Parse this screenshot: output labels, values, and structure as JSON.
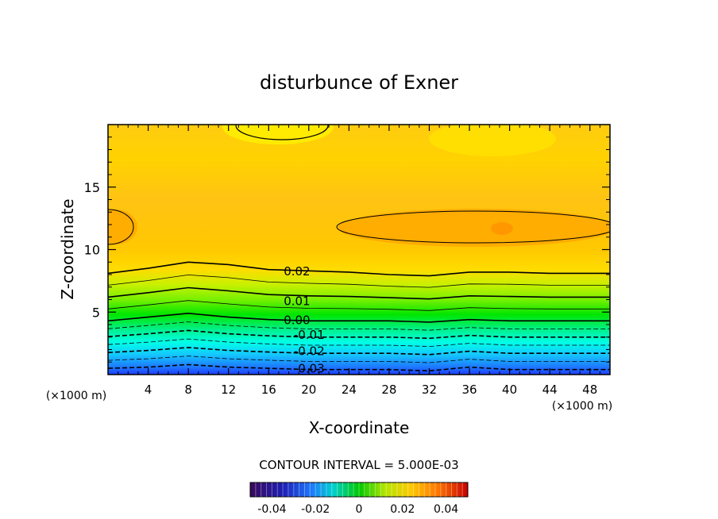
{
  "chart_data": {
    "type": "heatmap",
    "title": "disturbunce of Exner",
    "xlabel": "X-coordinate",
    "ylabel": "Z-coordinate",
    "x_unit": "(×1000 m)",
    "z_unit": "(×1000 m)",
    "xlim": [
      0,
      50
    ],
    "ylim": [
      0,
      20
    ],
    "x_ticks": [
      4,
      8,
      12,
      16,
      20,
      24,
      28,
      32,
      36,
      40,
      44,
      48
    ],
    "y_ticks": [
      5,
      10,
      15
    ],
    "contour_interval_text": "CONTOUR INTERVAL = 5.000E-03",
    "contour_labels": [
      {
        "text": "0.02",
        "x": 17.5,
        "z": 8.2
      },
      {
        "text": "0.01",
        "x": 17.5,
        "z": 5.8
      },
      {
        "text": "0.00",
        "x": 17.5,
        "z": 4.3
      },
      {
        "text": "-0.01",
        "x": 18.5,
        "z": 3.1
      },
      {
        "text": "-0.02",
        "x": 18.5,
        "z": 1.8
      },
      {
        "text": "-0.03",
        "x": 18.5,
        "z": 0.4
      }
    ],
    "contour_profile": {
      "x": [
        0,
        4,
        8,
        12,
        16,
        20,
        24,
        28,
        32,
        36,
        40,
        44,
        48,
        50
      ],
      "z_at_0.02": [
        8.1,
        8.5,
        9.0,
        8.8,
        8.4,
        8.3,
        8.2,
        8.0,
        7.9,
        8.2,
        8.2,
        8.1,
        8.1,
        8.1
      ],
      "z_at_0.00": [
        4.3,
        4.6,
        4.9,
        4.6,
        4.4,
        4.3,
        4.3,
        4.3,
        4.2,
        4.4,
        4.3,
        4.3,
        4.3,
        4.3
      ],
      "z_at_-0.03": [
        0.5,
        0.6,
        0.8,
        0.6,
        0.5,
        0.4,
        0.4,
        0.4,
        0.3,
        0.6,
        0.4,
        0.4,
        0.4,
        0.4
      ]
    },
    "colorbar": {
      "range": [
        -0.05,
        0.05
      ],
      "ticks": [
        "-0.04",
        "-0.02",
        "0",
        "0.02",
        "0.04"
      ]
    }
  }
}
